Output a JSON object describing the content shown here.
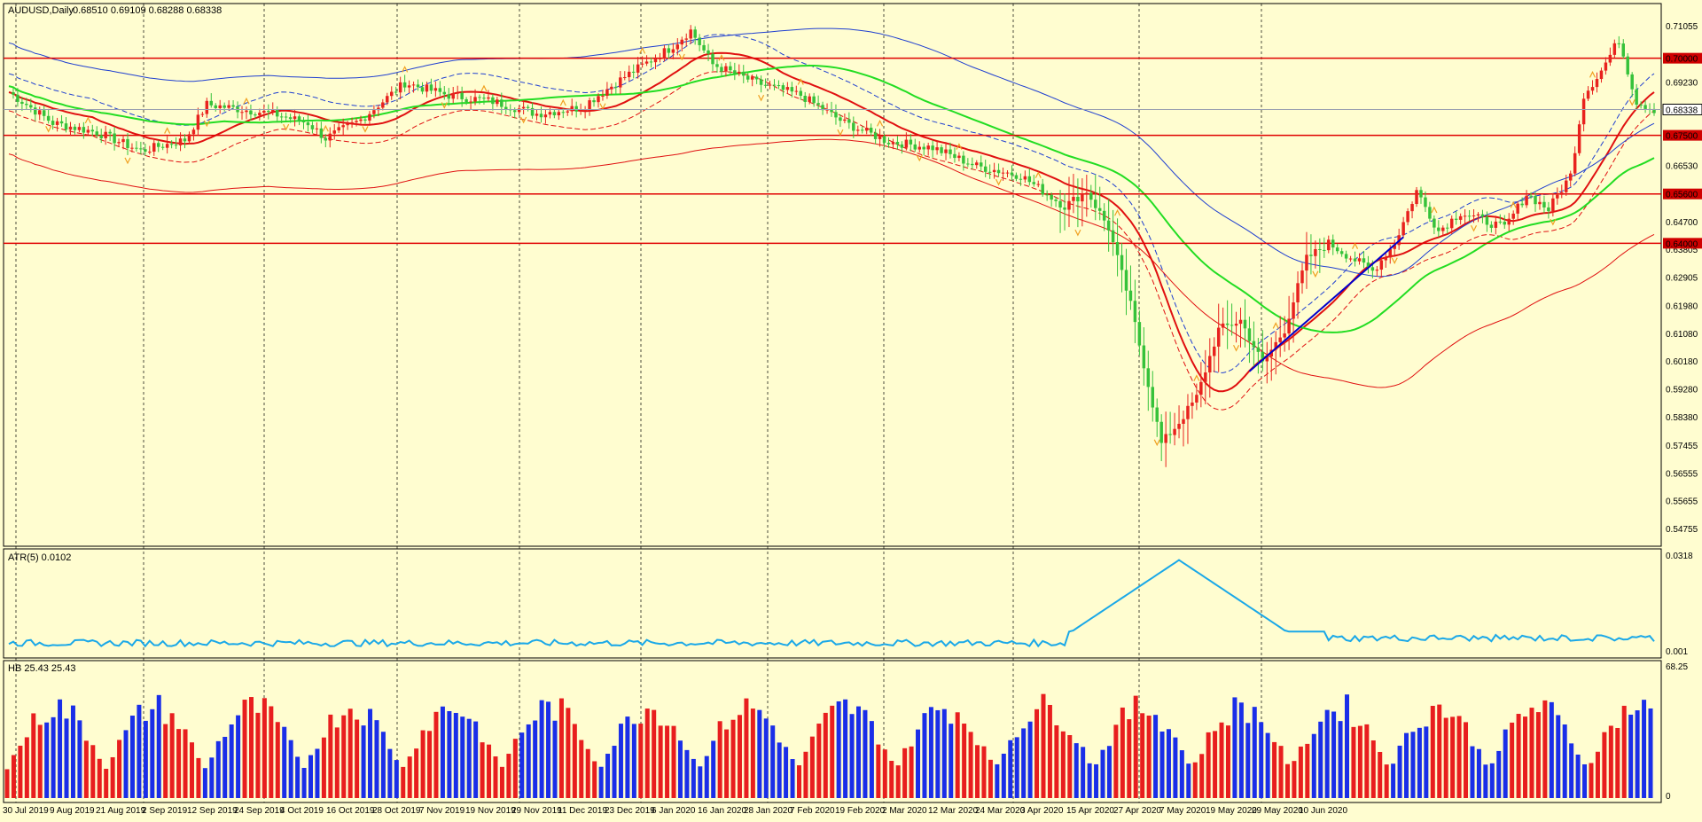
{
  "window": {
    "symbol_title": "AUDUSD,Daily",
    "ohlc": "0.68510 0.69109 0.68288 0.68338"
  },
  "colors": {
    "background": "#fffdd0",
    "bull": "#e8221e",
    "bear": "#36c23a",
    "ma_green": "#22dd22",
    "ma_red": "#e01010",
    "channel_blue": "#1f3fd0",
    "atr": "#1aa8e8",
    "hb_red": "#e81e1e",
    "hb_blue": "#1a2ee8",
    "resistance": "#e00000",
    "trendline": "#0000cc",
    "fractal": "#f0a020"
  },
  "chart_data": [
    {
      "type": "candlestick",
      "title": "AUDUSD,Daily",
      "ylim": [
        0.5435,
        0.716
      ],
      "x_ticks": [
        "30 Jul 2019",
        "9 Aug 2019",
        "21 Aug 2019",
        "2 Sep 2019",
        "12 Sep 2019",
        "24 Sep 2019",
        "4 Oct 2019",
        "16 Oct 2019",
        "28 Oct 2019",
        "7 Nov 2019",
        "19 Nov 2019",
        "29 Nov 2019",
        "11 Dec 2019",
        "23 Dec 2019",
        "6 Jan 2020",
        "16 Jan 2020",
        "28 Jan 2020",
        "7 Feb 2020",
        "19 Feb 2020",
        "2 Mar 2020",
        "12 Mar 2020",
        "24 Mar 2020",
        "3 Apr 2020",
        "15 Apr 2020",
        "27 Apr 2020",
        "7 May 2020",
        "19 May 2020",
        "29 May 2020",
        "10 Jun 2020"
      ],
      "y_ticks": [
        "0.71055",
        "0.70000",
        "0.69230",
        "0.68338",
        "0.67500",
        "0.66530",
        "0.65600",
        "0.64700",
        "0.64000",
        "0.63805",
        "0.62905",
        "0.61980",
        "0.61080",
        "0.60180",
        "0.59280",
        "0.58380",
        "0.57455",
        "0.56555",
        "0.55655",
        "0.54755"
      ],
      "horizontal_levels": [
        0.7,
        0.675,
        0.656,
        0.64
      ],
      "level_labels": [
        "0.70000",
        "0.67500",
        "0.65600",
        "0.64000"
      ],
      "current_price": 0.68338,
      "current_price_label": "0.68338",
      "path_points": [
        [
          0,
          0.689
        ],
        [
          10,
          0.679
        ],
        [
          20,
          0.676
        ],
        [
          30,
          0.67
        ],
        [
          40,
          0.6735
        ],
        [
          45,
          0.685
        ],
        [
          55,
          0.683
        ],
        [
          60,
          0.682
        ],
        [
          68,
          0.679
        ],
        [
          72,
          0.674
        ],
        [
          80,
          0.68
        ],
        [
          90,
          0.692
        ],
        [
          100,
          0.688
        ],
        [
          110,
          0.686
        ],
        [
          120,
          0.682
        ],
        [
          130,
          0.684
        ],
        [
          140,
          0.694
        ],
        [
          150,
          0.703
        ],
        [
          155,
          0.709
        ],
        [
          160,
          0.698
        ],
        [
          170,
          0.692
        ],
        [
          180,
          0.688
        ],
        [
          190,
          0.679
        ],
        [
          200,
          0.673
        ],
        [
          210,
          0.671
        ],
        [
          220,
          0.665
        ],
        [
          230,
          0.662
        ],
        [
          240,
          0.652
        ],
        [
          245,
          0.657
        ],
        [
          250,
          0.645
        ],
        [
          255,
          0.62
        ],
        [
          262,
          0.575
        ],
        [
          266,
          0.582
        ],
        [
          270,
          0.59
        ],
        [
          275,
          0.612
        ],
        [
          280,
          0.615
        ],
        [
          285,
          0.601
        ],
        [
          290,
          0.612
        ],
        [
          295,
          0.635
        ],
        [
          300,
          0.64
        ],
        [
          310,
          0.631
        ],
        [
          315,
          0.64
        ],
        [
          320,
          0.657
        ],
        [
          325,
          0.644
        ],
        [
          330,
          0.65
        ],
        [
          340,
          0.645
        ],
        [
          345,
          0.656
        ],
        [
          350,
          0.651
        ],
        [
          355,
          0.662
        ],
        [
          358,
          0.688
        ],
        [
          362,
          0.696
        ],
        [
          366,
          0.706
        ],
        [
          370,
          0.686
        ],
        [
          374,
          0.6834
        ]
      ]
    },
    {
      "type": "line",
      "title": "ATR(5) 0.0102",
      "ylim": [
        0.001,
        0.0318
      ],
      "y_ticks": [
        "0.0318",
        "0.001"
      ]
    },
    {
      "type": "bar",
      "title": "HB 25.43 25.43",
      "ylim": [
        0,
        68.25
      ],
      "y_ticks": [
        "68.25",
        "0"
      ]
    }
  ]
}
